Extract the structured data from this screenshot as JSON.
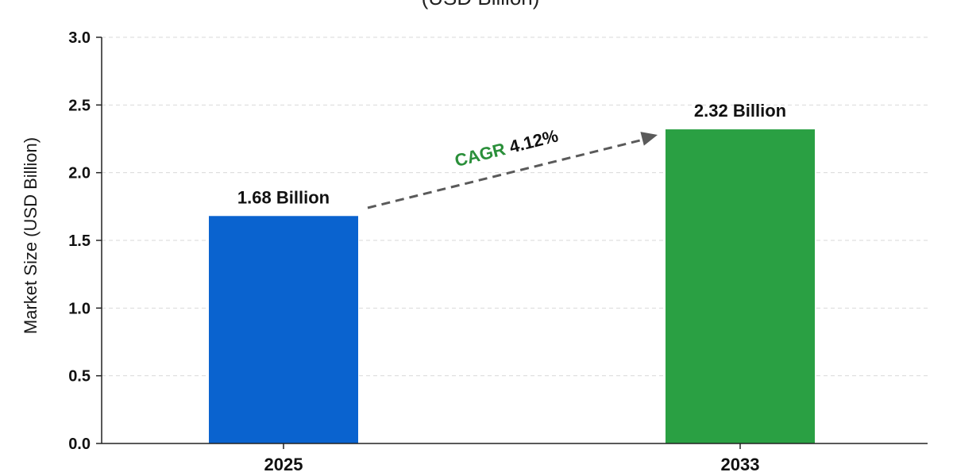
{
  "chart_data": {
    "type": "bar",
    "title": "(USD Billion)",
    "ylabel": "Market Size (USD Billion)",
    "xlabel": "",
    "categories": [
      "2025",
      "2033"
    ],
    "values": [
      1.68,
      2.32
    ],
    "data_labels": [
      "1.68 Billion",
      "2.32 Billion"
    ],
    "bar_colors": [
      "#0a63cf",
      "#2aa043"
    ],
    "ylim": [
      0,
      3.0
    ],
    "yticks": [
      "0.0",
      "0.5",
      "1.0",
      "1.5",
      "2.0",
      "2.5",
      "3.0"
    ],
    "ytick_values": [
      0,
      0.5,
      1.0,
      1.5,
      2.0,
      2.5,
      3.0
    ],
    "grid": true,
    "annotation": {
      "cagr_label": "CAGR",
      "cagr_value": "4.12%",
      "cagr_label_color": "#2a8f3a",
      "cagr_value_color": "#111111",
      "arrow_color": "#5a5a5a"
    }
  }
}
